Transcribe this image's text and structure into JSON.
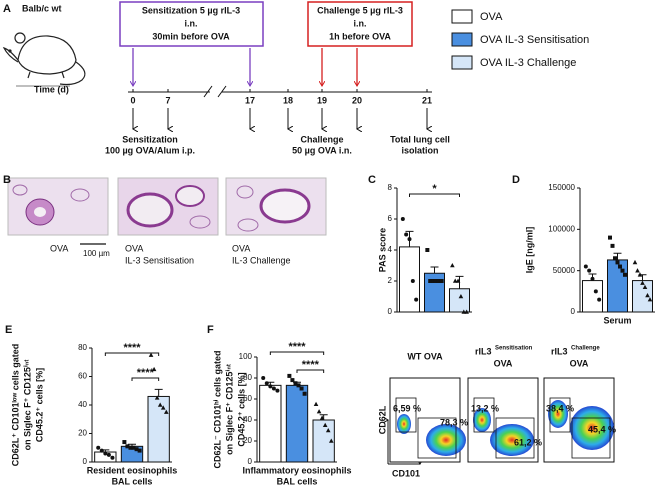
{
  "panel_a": {
    "label": "A",
    "strain": "Balb/c wt",
    "time_label": "Time (d)",
    "sensitization_box": [
      "Sensitization 5 µg rIL-3",
      "i.n.",
      "30min before OVA"
    ],
    "challenge_box": [
      "Challenge 5 µg rIL-3",
      "i.n.",
      "1h before OVA"
    ],
    "days": [
      0,
      7,
      17,
      18,
      19,
      20,
      21
    ],
    "notes": [
      [
        "Sensitization",
        "100 µg OVA/Alum i.p."
      ],
      [
        "Challenge",
        "50 µg OVA i.n."
      ],
      [
        "Total lung cell",
        "isolation"
      ]
    ]
  },
  "legend": [
    {
      "name": "OVA",
      "color": "#ffffff"
    },
    {
      "name": "OVA IL-3 Sensitisation",
      "color": "#4a8fe0"
    },
    {
      "name": "OVA IL-3 Challenge",
      "color": "#d5e6f8"
    }
  ],
  "panel_b": {
    "label": "B",
    "captions": [
      [
        "OVA"
      ],
      [
        "OVA",
        "IL-3 Sensitisation"
      ],
      [
        "OVA",
        "IL-3 Challenge"
      ]
    ],
    "scale": "100 µm"
  },
  "flow": {
    "ylabel": "CD62L",
    "xlabel": "CD101",
    "plots": [
      {
        "title": "WT OVA",
        "gates": [
          "6,59 %",
          "78,3 %"
        ]
      },
      {
        "title": "rIL3",
        "sup": "Sensitisation",
        "subtitle": "OVA",
        "gates": [
          "13,2 %",
          "61,2 %"
        ]
      },
      {
        "title": "rIL3",
        "sup": "Challenge",
        "subtitle": "OVA",
        "gates": [
          "38,4 %",
          "45,4 %"
        ]
      }
    ]
  },
  "chart_data": [
    {
      "type": "bar",
      "panel": "C",
      "ylabel": [
        "PAS score"
      ],
      "ylim": [
        0,
        8
      ],
      "yticks": [
        0,
        2,
        4,
        6,
        8
      ],
      "values": [
        4.2,
        2.5,
        1.5
      ],
      "errors": [
        1.0,
        0.4,
        0.8
      ],
      "points": [
        [
          6,
          5,
          4.7,
          2,
          0.8
        ],
        [
          4,
          2,
          2,
          2,
          2,
          2
        ],
        [
          3,
          2,
          2,
          1,
          0,
          0
        ]
      ],
      "significance": [
        "*"
      ]
    },
    {
      "type": "bar",
      "panel": "D",
      "ylabel": [
        "IgE [ng/ml]"
      ],
      "xlabel": [
        "Serum"
      ],
      "ylim": [
        0,
        150000
      ],
      "yticks": [
        0,
        50000,
        100000,
        150000
      ],
      "values": [
        38000,
        63000,
        38000
      ],
      "errors": [
        8000,
        8000,
        7000
      ],
      "points": [
        [
          55000,
          50000,
          40000,
          25000,
          15000
        ],
        [
          90000,
          80000,
          65000,
          60000,
          55000,
          50000,
          45000
        ],
        [
          60000,
          50000,
          45000,
          35000,
          30000,
          20000,
          15000
        ]
      ]
    },
    {
      "type": "bar",
      "panel": "E",
      "ylabel": [
        "CD62L⁺ CD101ˡᵒʷ cells gated",
        "on Siglec F⁺ CD125ⁱⁿᵗ",
        "CD45.2⁺ cells [%]"
      ],
      "xlabel": [
        "Resident eosinophils",
        "BAL cells"
      ],
      "ylim": [
        0,
        80
      ],
      "yticks": [
        0,
        20,
        40,
        60,
        80
      ],
      "values": [
        7,
        11,
        46
      ],
      "errors": [
        1.5,
        1.5,
        5
      ],
      "points": [
        [
          10,
          8,
          6,
          5,
          3
        ],
        [
          14,
          11,
          10,
          10,
          9,
          8
        ],
        [
          75,
          65,
          45,
          40,
          38,
          35
        ]
      ],
      "significance": [
        "****",
        "****"
      ]
    },
    {
      "type": "bar",
      "panel": "F",
      "ylabel": [
        "CD62L⁻ CD101ʰⁱ cells gated",
        "on Siglec F⁺ CD125ⁱⁿᵗ",
        "CD45.2⁺ cells [%]"
      ],
      "xlabel": [
        "Inflammatory eosinophils",
        "BAL cells"
      ],
      "ylim": [
        0,
        100
      ],
      "yticks": [
        0,
        20,
        40,
        60,
        80,
        100
      ],
      "values": [
        73,
        73,
        40
      ],
      "errors": [
        3,
        3,
        5
      ],
      "points": [
        [
          80,
          75,
          72,
          70,
          68
        ],
        [
          82,
          78,
          75,
          73,
          70,
          65
        ],
        [
          55,
          48,
          42,
          35,
          30,
          20
        ]
      ],
      "significance": [
        "****",
        "****"
      ]
    }
  ]
}
